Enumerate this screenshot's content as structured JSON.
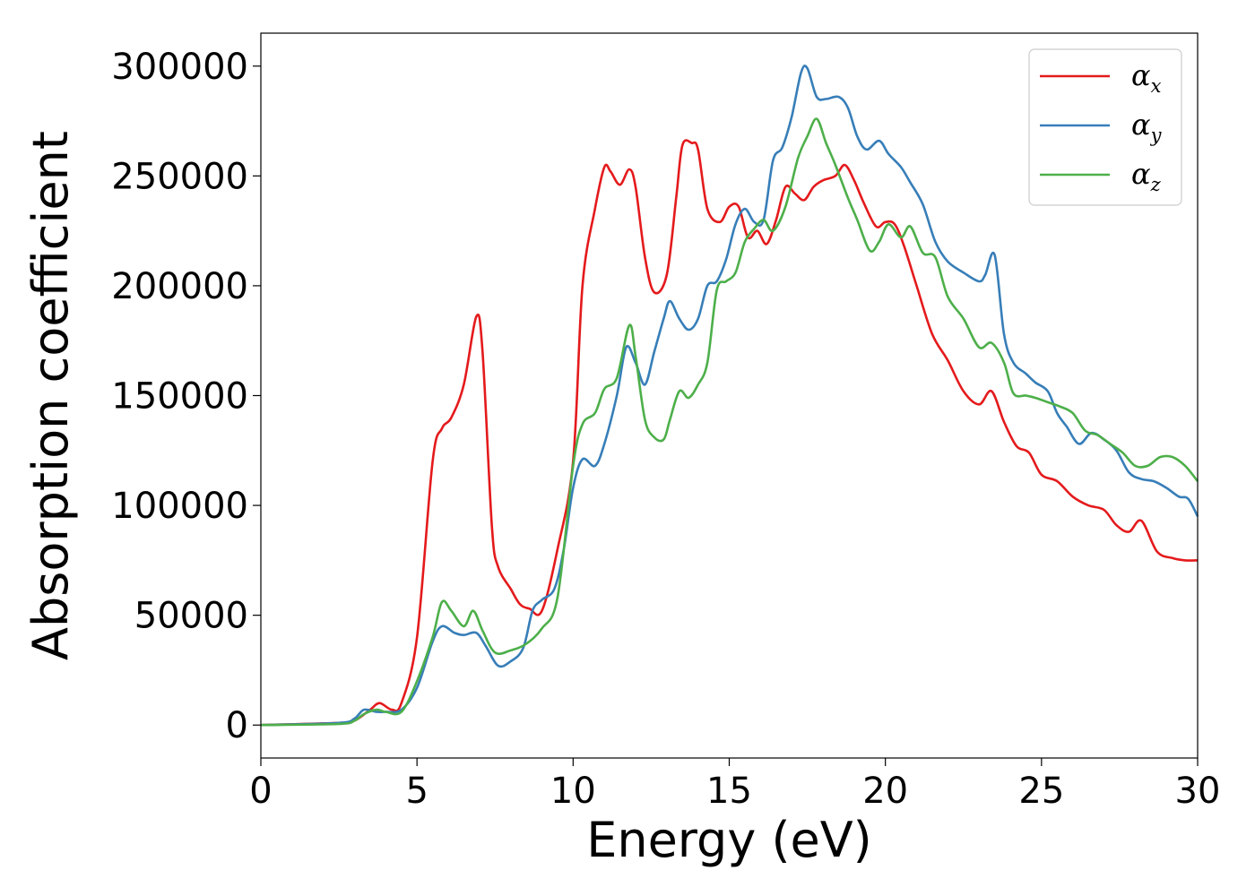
{
  "chart_data": {
    "type": "line",
    "xlabel": "Energy (eV)",
    "ylabel": "Absorption coefficient",
    "xlim": [
      0,
      30
    ],
    "ylim": [
      -15000,
      315000
    ],
    "xticks": [
      "0",
      "5",
      "10",
      "15",
      "20",
      "25",
      "30"
    ],
    "yticks": [
      "0",
      "50000",
      "100000",
      "150000",
      "200000",
      "250000",
      "300000"
    ],
    "grid": false,
    "legend_position": "top-right",
    "series": [
      {
        "name": "α",
        "subscript": "x",
        "color": "#e41a1c",
        "x": [
          0,
          2.5,
          3.0,
          3.5,
          3.8,
          4.2,
          4.5,
          5.0,
          5.5,
          5.8,
          6.1,
          6.5,
          6.9,
          7.1,
          7.4,
          7.6,
          8.0,
          8.3,
          8.6,
          9.0,
          9.5,
          10.0,
          10.3,
          10.7,
          11.0,
          11.2,
          11.5,
          11.8,
          12.0,
          12.3,
          12.6,
          13.0,
          13.3,
          13.5,
          13.8,
          14.0,
          14.3,
          14.7,
          15.0,
          15.3,
          15.6,
          15.9,
          16.2,
          16.5,
          16.8,
          17.1,
          17.4,
          17.7,
          18.0,
          18.4,
          18.7,
          19.0,
          19.3,
          19.7,
          20.0,
          20.3,
          20.6,
          21.0,
          21.5,
          22.0,
          22.5,
          23.0,
          23.4,
          23.8,
          24.2,
          24.6,
          25.0,
          25.5,
          26.0,
          26.5,
          27.0,
          27.4,
          27.8,
          28.2,
          28.7,
          29.2,
          29.6,
          30.0
        ],
        "values": [
          0,
          1000,
          2000,
          7000,
          10000,
          7000,
          10000,
          40000,
          120000,
          135000,
          140000,
          155000,
          186000,
          170000,
          90000,
          72000,
          62000,
          55000,
          53000,
          52000,
          80000,
          120000,
          200000,
          235000,
          254000,
          252000,
          246000,
          253000,
          245000,
          213000,
          197000,
          205000,
          240000,
          264000,
          265000,
          262000,
          235000,
          229000,
          236000,
          236000,
          222000,
          225000,
          219000,
          230000,
          245000,
          242000,
          239000,
          245000,
          248000,
          250000,
          255000,
          248000,
          238000,
          227000,
          229000,
          228000,
          218000,
          200000,
          178000,
          166000,
          152000,
          146000,
          152000,
          138000,
          127000,
          124000,
          114000,
          111000,
          104000,
          100000,
          98000,
          91000,
          88000,
          93000,
          79000,
          76000,
          75000,
          75000
        ]
      },
      {
        "name": "α",
        "subscript": "y",
        "color": "#377eb8",
        "x": [
          0,
          2.5,
          3.0,
          3.3,
          3.7,
          4.0,
          4.5,
          5.0,
          5.5,
          5.8,
          6.2,
          6.5,
          6.9,
          7.2,
          7.6,
          8.0,
          8.4,
          8.7,
          9.0,
          9.4,
          9.7,
          10.0,
          10.3,
          10.7,
          11.0,
          11.4,
          11.7,
          12.0,
          12.3,
          12.6,
          12.9,
          13.1,
          13.4,
          13.7,
          14.0,
          14.3,
          14.6,
          14.9,
          15.2,
          15.5,
          15.8,
          16.1,
          16.4,
          16.7,
          17.0,
          17.3,
          17.5,
          17.8,
          18.1,
          18.5,
          18.8,
          19.1,
          19.4,
          19.8,
          20.1,
          20.5,
          20.8,
          21.2,
          21.6,
          22.0,
          22.5,
          23.0,
          23.2,
          23.5,
          23.8,
          24.1,
          24.5,
          24.8,
          25.2,
          25.5,
          25.8,
          26.2,
          26.6,
          27.0,
          27.4,
          27.8,
          28.2,
          28.6,
          29.0,
          29.4,
          29.7,
          30.0
        ],
        "values": [
          0,
          1000,
          3000,
          7000,
          6000,
          6000,
          7000,
          17000,
          38000,
          45000,
          42000,
          41000,
          42000,
          36000,
          27000,
          29000,
          35000,
          52000,
          57000,
          62000,
          80000,
          108000,
          121000,
          118000,
          128000,
          150000,
          172000,
          165000,
          155000,
          170000,
          185000,
          193000,
          185000,
          180000,
          185000,
          200000,
          202000,
          212000,
          228000,
          235000,
          229000,
          230000,
          257000,
          263000,
          277000,
          297000,
          299000,
          286000,
          285000,
          286000,
          281000,
          268000,
          262000,
          266000,
          260000,
          254000,
          247000,
          237000,
          220000,
          211000,
          206000,
          202000,
          205000,
          214000,
          178000,
          165000,
          160000,
          156000,
          152000,
          142000,
          136000,
          128000,
          133000,
          130000,
          125000,
          115000,
          112000,
          111000,
          108000,
          104000,
          103000,
          95000
        ]
      },
      {
        "name": "α",
        "subscript": "z",
        "color": "#4daf4a",
        "x": [
          0,
          2.5,
          3.0,
          3.3,
          3.7,
          4.0,
          4.5,
          5.0,
          5.5,
          5.8,
          6.1,
          6.5,
          6.8,
          7.1,
          7.5,
          8.0,
          8.5,
          9.0,
          9.5,
          10.0,
          10.3,
          10.7,
          11.0,
          11.4,
          11.8,
          12.0,
          12.3,
          12.6,
          12.9,
          13.1,
          13.4,
          13.7,
          14.0,
          14.3,
          14.6,
          14.9,
          15.2,
          15.5,
          15.8,
          16.1,
          16.4,
          16.8,
          17.2,
          17.5,
          17.8,
          18.1,
          18.4,
          18.8,
          19.1,
          19.5,
          19.8,
          20.1,
          20.5,
          20.8,
          21.2,
          21.6,
          22.0,
          22.5,
          23.0,
          23.4,
          23.8,
          24.1,
          24.5,
          24.8,
          25.2,
          25.6,
          26.0,
          26.4,
          26.8,
          27.2,
          27.6,
          28.0,
          28.4,
          28.8,
          29.2,
          29.6,
          30.0
        ],
        "values": [
          0,
          500,
          2000,
          5000,
          7000,
          6000,
          6000,
          20000,
          40000,
          56000,
          52000,
          45000,
          52000,
          43000,
          33000,
          34000,
          37000,
          44000,
          58000,
          118000,
          137000,
          142000,
          153000,
          158000,
          182000,
          168000,
          139000,
          131000,
          130000,
          139000,
          152000,
          149000,
          155000,
          165000,
          198000,
          202000,
          206000,
          220000,
          226000,
          230000,
          225000,
          236000,
          258000,
          268000,
          276000,
          265000,
          255000,
          240000,
          230000,
          216000,
          220000,
          228000,
          222000,
          227000,
          215000,
          213000,
          195000,
          185000,
          172000,
          174000,
          165000,
          151000,
          150000,
          149000,
          147000,
          145000,
          142000,
          134000,
          132000,
          128000,
          124000,
          118000,
          118000,
          122000,
          122000,
          118000,
          111000
        ]
      }
    ]
  }
}
